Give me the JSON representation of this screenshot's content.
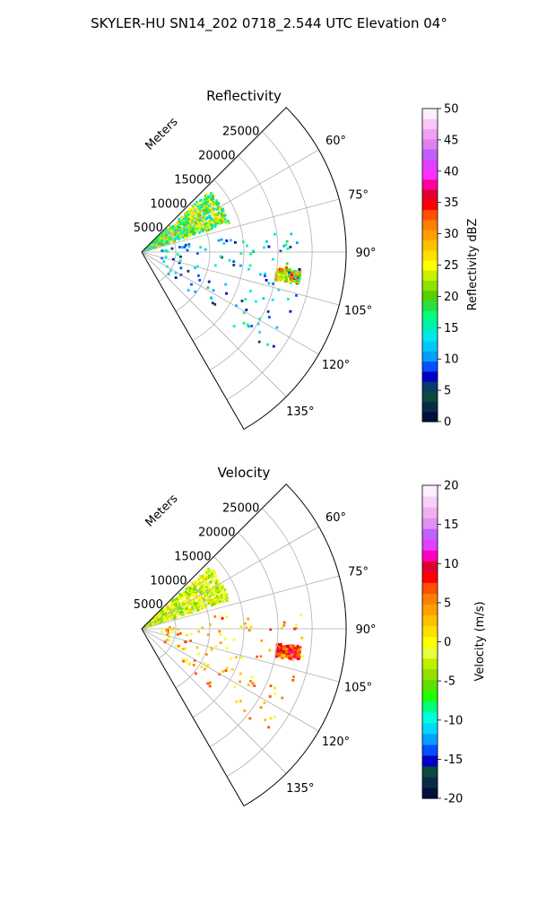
{
  "title": "SKYLER-HU  SN14_202  0718_2.544 UTC Elevation 04°",
  "chart_data": [
    {
      "type": "polar-sector-heatmap",
      "title": "Reflectivity",
      "radial_axis_label": "Meters",
      "radial_ticks": [
        5000,
        10000,
        15000,
        20000,
        25000
      ],
      "range_max_m": 30000,
      "azimuth_range_deg": [
        45,
        150
      ],
      "azimuth_ticks": [
        "60°",
        "75°",
        "90°",
        "105°",
        "120°",
        "135°"
      ],
      "azimuth_tick_values": [
        60,
        75,
        90,
        105,
        120,
        135
      ],
      "grid": true,
      "colorbar": {
        "label": "Reflectivity dBZ",
        "min": 0,
        "max": 50,
        "ticks": [
          0,
          5,
          10,
          15,
          20,
          25,
          30,
          35,
          40,
          45,
          50
        ],
        "colors": [
          "#00103a",
          "#0a2a4a",
          "#0c4a3a",
          "#0a3a6a",
          "#0000c8",
          "#0050ff",
          "#00a0ff",
          "#00c8ff",
          "#00e8e8",
          "#00f0b0",
          "#00ff80",
          "#28e040",
          "#58d000",
          "#90e000",
          "#c8f000",
          "#ffff00",
          "#ffe000",
          "#ffc000",
          "#ffa000",
          "#ff8000",
          "#ff5000",
          "#ff0000",
          "#e00030",
          "#ff00a0",
          "#ff30ff",
          "#e040ff",
          "#c060ff",
          "#e080f0",
          "#f0a0f0",
          "#f8c8f8",
          "#ffeeff"
        ]
      },
      "echoes": [
        {
          "region": "near-range band",
          "az_deg": [
            48,
            72
          ],
          "range_m": [
            500,
            13500
          ],
          "dbz": [
            12,
            28
          ]
        },
        {
          "region": "cell near 99°",
          "az_deg": [
            96,
            102
          ],
          "range_m": [
            20000,
            23500
          ],
          "dbz": [
            15,
            35
          ]
        },
        {
          "region": "scattered",
          "az_deg": [
            80,
            130
          ],
          "range_m": [
            3000,
            24000
          ],
          "dbz": [
            5,
            18
          ]
        }
      ]
    },
    {
      "type": "polar-sector-heatmap",
      "title": "Velocity",
      "radial_axis_label": "Meters",
      "radial_ticks": [
        5000,
        10000,
        15000,
        20000,
        25000
      ],
      "range_max_m": 30000,
      "azimuth_range_deg": [
        45,
        150
      ],
      "azimuth_ticks": [
        "60°",
        "75°",
        "90°",
        "105°",
        "120°",
        "135°"
      ],
      "azimuth_tick_values": [
        60,
        75,
        90,
        105,
        120,
        135
      ],
      "grid": true,
      "colorbar": {
        "label": "Velocity (m/s)",
        "min": -20,
        "max": 20,
        "ticks": [
          -20,
          -15,
          -10,
          -5,
          0,
          5,
          10,
          15,
          20
        ],
        "colors": [
          "#00103a",
          "#0a2a4a",
          "#0c4a3a",
          "#0000c8",
          "#0050ff",
          "#00a0ff",
          "#00d8ff",
          "#00ffe0",
          "#00ff80",
          "#20ff00",
          "#60e000",
          "#90e000",
          "#c0f000",
          "#e8ff40",
          "#ffff00",
          "#ffe000",
          "#ffc000",
          "#ffa000",
          "#ff8000",
          "#ff5000",
          "#ff0000",
          "#e00030",
          "#ff00c0",
          "#e040ff",
          "#c060ff",
          "#e090f0",
          "#f0b0f0",
          "#f8d0f8",
          "#ffeeff"
        ]
      },
      "echoes": [
        {
          "region": "near-range band",
          "az_deg": [
            48,
            72
          ],
          "range_m": [
            500,
            13500
          ],
          "velocity_ms": [
            -6,
            2
          ]
        },
        {
          "region": "cell near 99°",
          "az_deg": [
            96,
            102
          ],
          "range_m": [
            20000,
            23500
          ],
          "velocity_ms": [
            4,
            11
          ]
        },
        {
          "region": "scattered",
          "az_deg": [
            80,
            130
          ],
          "range_m": [
            3000,
            24000
          ],
          "velocity_ms": [
            -2,
            8
          ]
        }
      ]
    }
  ]
}
